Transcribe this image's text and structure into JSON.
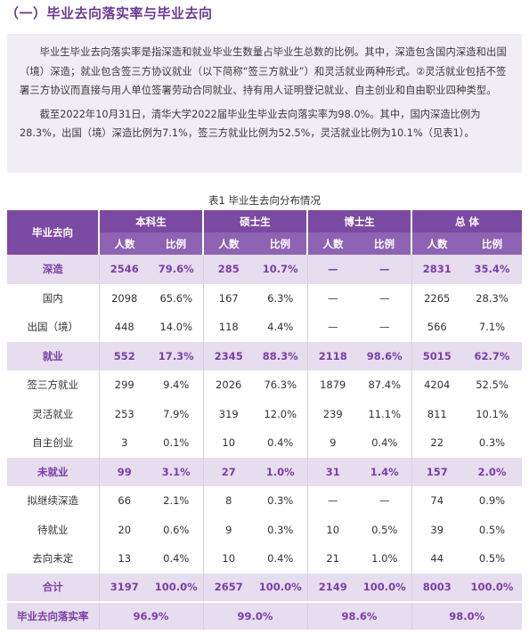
{
  "section_heading": "（一）毕业去向落实率与毕业去向",
  "intro": {
    "p1": "毕业生毕业去向落实率是指深造和就业毕业生数量占毕业生总数的比例。其中，深造包含国内深造和出国（境）深造；就业包含签三方协议就业（以下简称“签三方就业”）和灵活就业两种形式。②灵活就业包括不签署三方协议而直接与用人单位签署劳动合同就业、持有用人证明登记就业、自主创业和自由职业四种类型。",
    "p2": "截至2022年10月31日，清华大学2022届毕业生毕业去向落实率为98.0%。其中，国内深造比例为28.3%，出国（境）深造比例为7.1%，签三方就业比例为52.5%，灵活就业比例为10.1%（见表1）。"
  },
  "table_caption": "表1  毕业生去向分布情况",
  "table": {
    "corner": "毕业去向",
    "groups": [
      "本科生",
      "硕士生",
      "博士生",
      "总  体"
    ],
    "sub_headers": [
      "人数",
      "比例",
      "人数",
      "比例",
      "人数",
      "比例",
      "人数",
      "比例"
    ],
    "rows": [
      {
        "kind": "main",
        "cells": [
          "深造",
          "2546",
          "79.6%",
          "285",
          "10.7%",
          "—",
          "—",
          "2831",
          "35.4%"
        ]
      },
      {
        "kind": "sub",
        "cells": [
          "国内",
          "2098",
          "65.6%",
          "167",
          "6.3%",
          "—",
          "—",
          "2265",
          "28.3%"
        ]
      },
      {
        "kind": "sub",
        "cells": [
          "出国（境）",
          "448",
          "14.0%",
          "118",
          "4.4%",
          "—",
          "—",
          "566",
          "7.1%"
        ]
      },
      {
        "kind": "main",
        "cells": [
          "就业",
          "552",
          "17.3%",
          "2345",
          "88.3%",
          "2118",
          "98.6%",
          "5015",
          "62.7%"
        ]
      },
      {
        "kind": "sub",
        "cells": [
          "签三方就业",
          "299",
          "9.4%",
          "2026",
          "76.3%",
          "1879",
          "87.4%",
          "4204",
          "52.5%"
        ]
      },
      {
        "kind": "sub",
        "cells": [
          "灵活就业",
          "253",
          "7.9%",
          "319",
          "12.0%",
          "239",
          "11.1%",
          "811",
          "10.1%"
        ]
      },
      {
        "kind": "sub",
        "cells": [
          "自主创业",
          "3",
          "0.1%",
          "10",
          "0.4%",
          "9",
          "0.4%",
          "22",
          "0.3%"
        ]
      },
      {
        "kind": "main",
        "cells": [
          "未就业",
          "99",
          "3.1%",
          "27",
          "1.0%",
          "31",
          "1.4%",
          "157",
          "2.0%"
        ]
      },
      {
        "kind": "sub",
        "cells": [
          "拟继续深造",
          "66",
          "2.1%",
          "8",
          "0.3%",
          "—",
          "—",
          "74",
          "0.9%"
        ]
      },
      {
        "kind": "sub",
        "cells": [
          "待就业",
          "20",
          "0.6%",
          "9",
          "0.3%",
          "10",
          "0.5%",
          "39",
          "0.5%"
        ]
      },
      {
        "kind": "sub",
        "cells": [
          "去向未定",
          "13",
          "0.4%",
          "10",
          "0.4%",
          "21",
          "1.0%",
          "44",
          "0.5%"
        ]
      },
      {
        "kind": "total",
        "cells": [
          "合计",
          "3197",
          "100.0%",
          "2657",
          "100.0%",
          "2149",
          "100.0%",
          "8003",
          "100.0%"
        ]
      }
    ],
    "rate_row": {
      "label": "毕业去向落实率",
      "values": [
        "96.9%",
        "99.0%",
        "98.6%",
        "98.0%"
      ]
    }
  },
  "colors": {
    "accent": "#7b4aa2",
    "highlight_row": "#e6ddef",
    "intro_bg": "#f1edf4",
    "highlight_text": "#7b3fa6"
  }
}
